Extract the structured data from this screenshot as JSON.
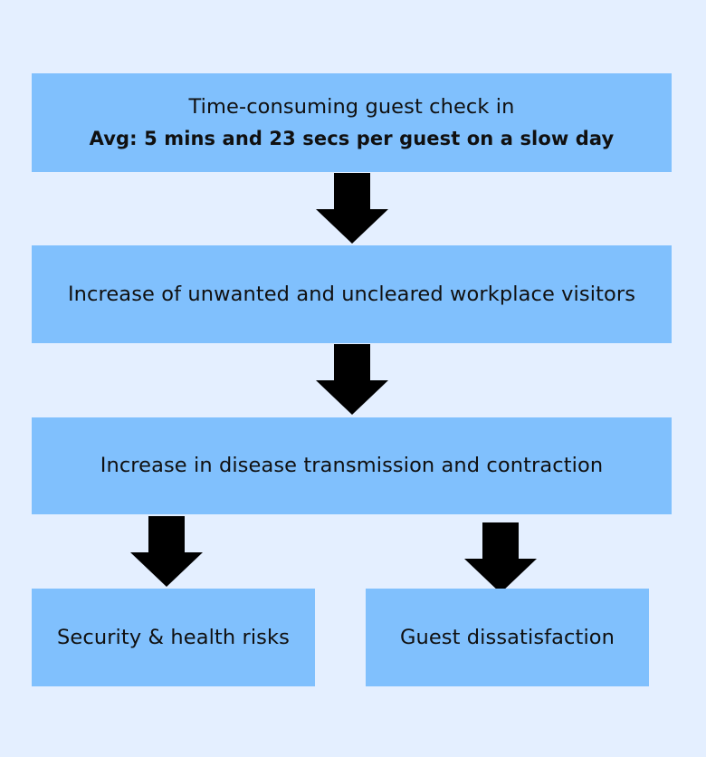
{
  "boxes": {
    "step1": {
      "line1": "Time-consuming guest check in",
      "line2": "Avg: 5 mins and 23 secs per guest on a slow day"
    },
    "step2": {
      "text": "Increase of unwanted and uncleared workplace visitors"
    },
    "step3": {
      "text": "Increase in disease transmission and contraction"
    },
    "outcome_left": {
      "text": "Security & health risks"
    },
    "outcome_right": {
      "text": "Guest dissatisfaction"
    }
  },
  "colors": {
    "background": "#e4efff",
    "box_fill": "#80c0fd",
    "arrow": "#000000",
    "text": "#101010"
  },
  "icons": {
    "arrow": "arrow-down-icon"
  }
}
